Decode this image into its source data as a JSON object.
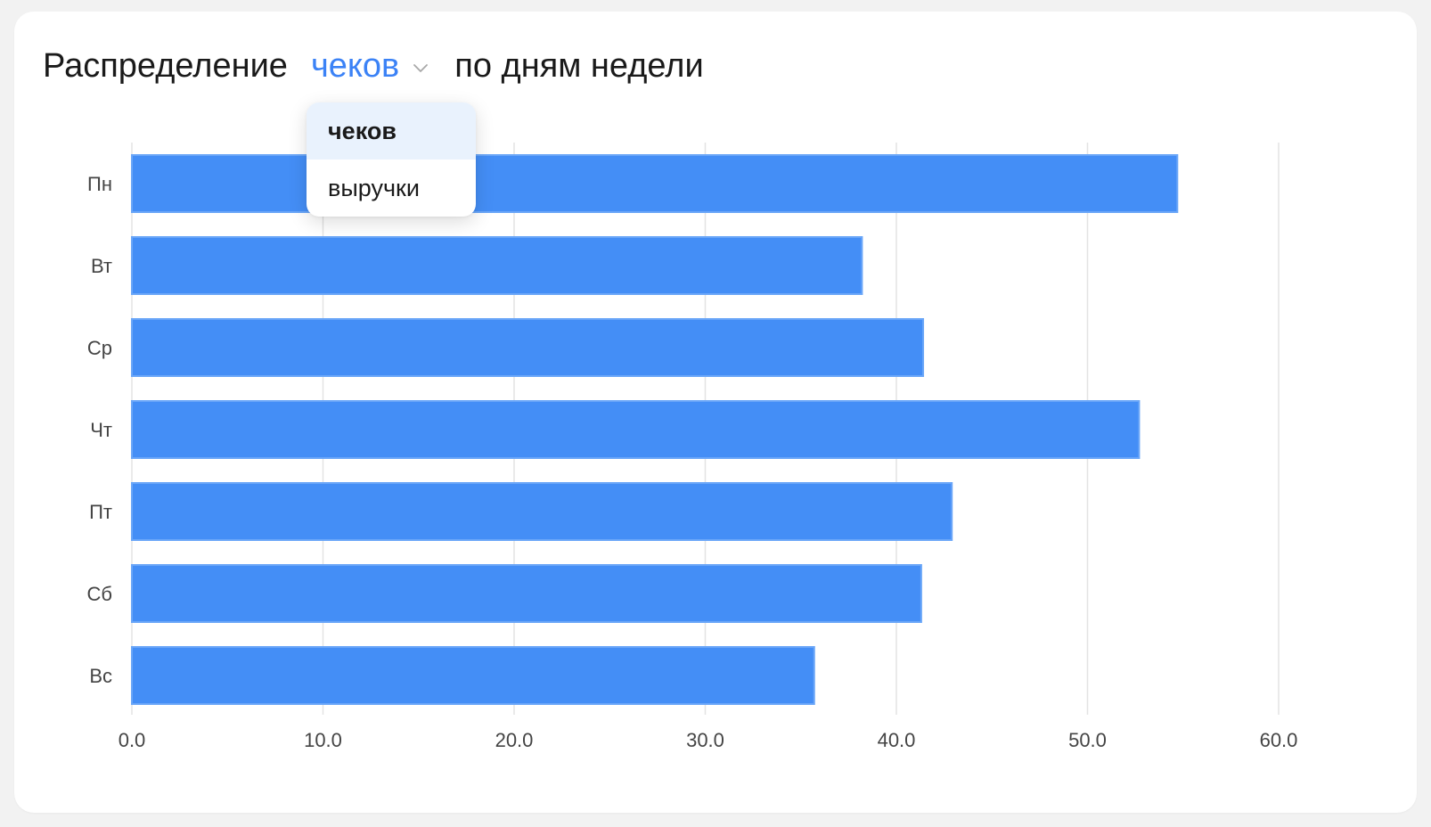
{
  "header": {
    "title_prefix": "Распределение",
    "selected_metric": "чеков",
    "title_suffix": "по дням недели"
  },
  "dropdown": {
    "open": true,
    "options": [
      "чеков",
      "выручки"
    ],
    "selected_index": 0
  },
  "colors": {
    "accent": "#3b82f6",
    "bar": "#448ef6",
    "bar_border": "#6aa6f8",
    "grid": "#e3e3e3",
    "axis_text": "#444444"
  },
  "icons": {
    "dropdown": "chevron-down-icon"
  },
  "chart_data": {
    "type": "bar",
    "orientation": "horizontal",
    "categories": [
      "Пн",
      "Вт",
      "Ср",
      "Чт",
      "Пт",
      "Сб",
      "Вс"
    ],
    "values": [
      54.7,
      38.2,
      41.4,
      52.7,
      42.9,
      41.3,
      35.7
    ],
    "xlim": [
      0,
      60
    ],
    "xticks": [
      "0.0",
      "10.0",
      "20.0",
      "30.0",
      "40.0",
      "50.0",
      "60.0"
    ],
    "grid": true,
    "legend": "none"
  }
}
